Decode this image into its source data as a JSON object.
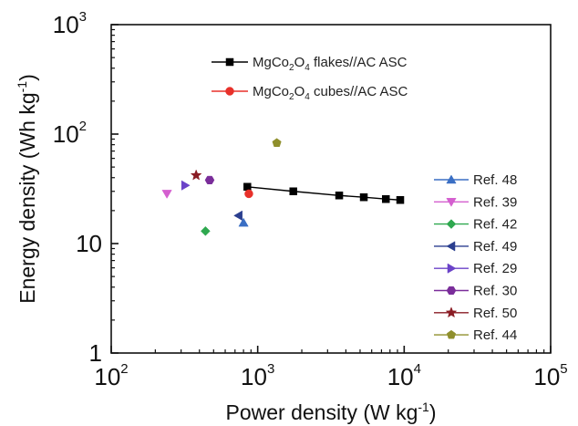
{
  "chart_data": {
    "type": "scatter",
    "title": "",
    "xlabel": "Power density (W kg$^{-1}$)",
    "ylabel": "Energy density (Wh kg$^{-1}$)",
    "xlabel_parts": {
      "pre": "Power density (W kg",
      "sup": "-1",
      "post": ")"
    },
    "ylabel_parts": {
      "pre": "Energy density (Wh kg",
      "sup": "-1",
      "post": ")"
    },
    "xscale": "log",
    "yscale": "log",
    "xlim": [
      100,
      100000
    ],
    "ylim": [
      1,
      1000
    ],
    "x_ticks": [
      {
        "value": 100,
        "base": "10",
        "exp": "2"
      },
      {
        "value": 1000,
        "base": "10",
        "exp": "3"
      },
      {
        "value": 10000,
        "base": "10",
        "exp": "4"
      },
      {
        "value": 100000,
        "base": "10",
        "exp": "5"
      }
    ],
    "y_ticks": [
      {
        "value": 1,
        "label": "1"
      },
      {
        "value": 10,
        "label": "10"
      },
      {
        "value": 100,
        "base": "10",
        "exp": "2"
      },
      {
        "value": 1000,
        "base": "10",
        "exp": "3"
      }
    ],
    "grid": false,
    "series": [
      {
        "name": "MgCo2O4 flakes//AC ASC",
        "name_parts": {
          "pre": "MgCo",
          "sub1": "2",
          "mid": "O",
          "sub2": "4",
          "post": " flakes//AC ASC"
        },
        "marker": "square",
        "color": "#000000",
        "line": true,
        "points": [
          [
            850,
            33
          ],
          [
            1750,
            30
          ],
          [
            3600,
            27.5
          ],
          [
            5300,
            26.5
          ],
          [
            7500,
            25.5
          ],
          [
            9400,
            25
          ]
        ]
      },
      {
        "name": "MgCo2O4 cubes//AC ASC",
        "name_parts": {
          "pre": "MgCo",
          "sub1": "2",
          "mid": "O",
          "sub2": "4",
          "post": " cubes//AC ASC"
        },
        "marker": "circle",
        "color": "#e8312a",
        "line": false,
        "points": [
          [
            870,
            28.5
          ]
        ]
      },
      {
        "name": "Ref. 48",
        "marker": "triangle-up",
        "color": "#3a6fc4",
        "points": [
          [
            800,
            15.5
          ]
        ]
      },
      {
        "name": "Ref. 39",
        "marker": "triangle-down",
        "color": "#d45fcf",
        "points": [
          [
            240,
            28.5
          ]
        ]
      },
      {
        "name": "Ref. 42",
        "marker": "diamond",
        "color": "#2ea84f",
        "points": [
          [
            440,
            13
          ]
        ]
      },
      {
        "name": "Ref. 49",
        "marker": "triangle-left",
        "color": "#2b3f8f",
        "points": [
          [
            740,
            18
          ]
        ]
      },
      {
        "name": "Ref. 29",
        "marker": "triangle-right",
        "color": "#6b43c8",
        "points": [
          [
            320,
            34
          ]
        ]
      },
      {
        "name": "Ref. 30",
        "marker": "hexagon",
        "color": "#7a2d9a",
        "points": [
          [
            470,
            38
          ]
        ]
      },
      {
        "name": "Ref. 50",
        "marker": "star",
        "color": "#8a1c24",
        "points": [
          [
            380,
            42
          ]
        ]
      },
      {
        "name": "Ref. 44",
        "marker": "pentagon",
        "color": "#8f8f2c",
        "points": [
          [
            1350,
            83
          ]
        ]
      }
    ],
    "legend_placement": [
      "top-center",
      "right"
    ]
  }
}
